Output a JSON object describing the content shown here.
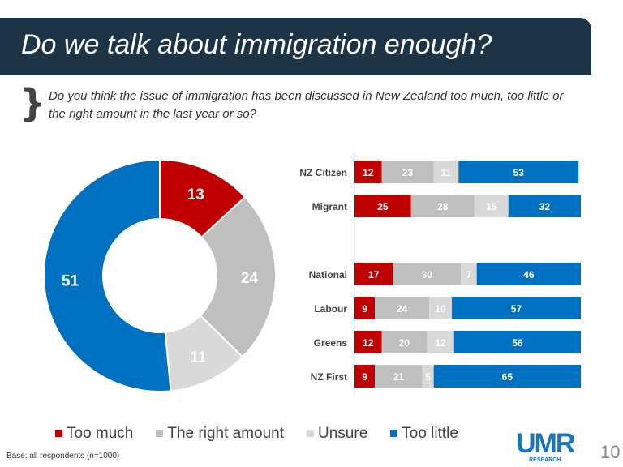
{
  "title": "Do we talk about immigration enough?",
  "question": "Do you think the issue of immigration has been discussed in New Zealand too much, too little or the right amount in the last year or so?",
  "base": "Base: all respondents (n=1000)",
  "page_number": "10",
  "logo": {
    "main": "UMR",
    "sub": "RESEARCH"
  },
  "colors": {
    "Too much": "#c00000",
    "The right amount": "#bfbfbf",
    "Unsure": "#d9d9d9",
    "Too little": "#0070c0"
  },
  "chart_data": [
    {
      "type": "pie",
      "donut": true,
      "categories": [
        "Too much",
        "The right amount",
        "Unsure",
        "Too little"
      ],
      "values": [
        13,
        24,
        11,
        51
      ]
    },
    {
      "type": "bar",
      "orientation": "horizontal",
      "stacked": true,
      "categories": [
        "NZ Citizen",
        "Migrant",
        "National",
        "Labour",
        "Greens",
        "NZ First"
      ],
      "series": [
        {
          "name": "Too much",
          "values": [
            12,
            25,
            17,
            9,
            12,
            9
          ]
        },
        {
          "name": "The right amount",
          "values": [
            23,
            28,
            30,
            24,
            20,
            21
          ]
        },
        {
          "name": "Unsure",
          "values": [
            11,
            15,
            7,
            10,
            12,
            5
          ]
        },
        {
          "name": "Too little",
          "values": [
            53,
            32,
            46,
            57,
            56,
            65
          ]
        }
      ]
    }
  ],
  "legend": [
    "Too much",
    "The right amount",
    "Unsure",
    "Too little"
  ]
}
